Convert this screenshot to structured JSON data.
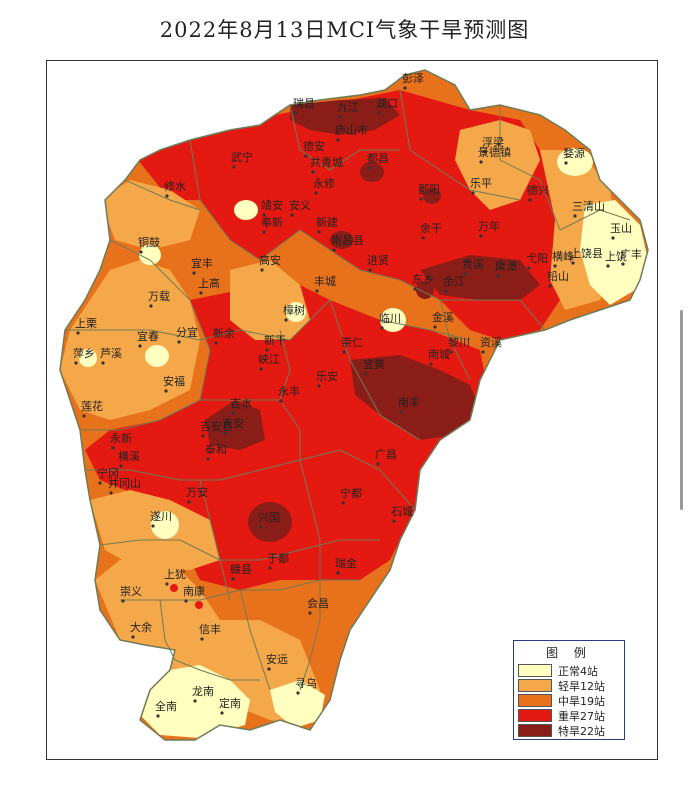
{
  "title": "2022年8月13日MCI气象干旱预测图",
  "colors": {
    "normal": "#FFFFC0",
    "light": "#F5A84A",
    "moderate": "#E8721C",
    "severe": "#E41A12",
    "extreme": "#8B1D18",
    "border": "#6E7B55"
  },
  "legend": {
    "title": "图  例",
    "items": [
      {
        "label": "正常4站",
        "color": "#FFFFC0"
      },
      {
        "label": "轻旱12站",
        "color": "#F5A84A"
      },
      {
        "label": "中旱19站",
        "color": "#E8721C"
      },
      {
        "label": "重旱27站",
        "color": "#E41A12"
      },
      {
        "label": "特旱22站",
        "color": "#8B1D18"
      }
    ]
  },
  "cities": [
    {
      "name": "彭泽"
    },
    {
      "name": "瑞昌"
    },
    {
      "name": "九江"
    },
    {
      "name": "湖口"
    },
    {
      "name": "庐山市"
    },
    {
      "name": "德安"
    },
    {
      "name": "共青城"
    },
    {
      "name": "都昌"
    },
    {
      "name": "武宁"
    },
    {
      "name": "修水"
    },
    {
      "name": "永修"
    },
    {
      "name": "婺源"
    },
    {
      "name": "浮梁"
    },
    {
      "name": "景德镇"
    },
    {
      "name": "鄱阳"
    },
    {
      "name": "乐平"
    },
    {
      "name": "德兴"
    },
    {
      "name": "三清山"
    },
    {
      "name": "玉山"
    },
    {
      "name": "上饶县"
    },
    {
      "name": "上饶"
    },
    {
      "name": "广丰"
    },
    {
      "name": "靖安"
    },
    {
      "name": "安义"
    },
    {
      "name": "奉新"
    },
    {
      "name": "新建"
    },
    {
      "name": "南昌县"
    },
    {
      "name": "进贤"
    },
    {
      "name": "余干"
    },
    {
      "name": "万年"
    },
    {
      "name": "弋阳"
    },
    {
      "name": "横峰"
    },
    {
      "name": "铅山"
    },
    {
      "name": "铜鼓"
    },
    {
      "name": "宜丰"
    },
    {
      "name": "高安"
    },
    {
      "name": "上高"
    },
    {
      "name": "丰城"
    },
    {
      "name": "东乡"
    },
    {
      "name": "余江"
    },
    {
      "name": "贵溪"
    },
    {
      "name": "鹰潭"
    },
    {
      "name": "万载"
    },
    {
      "name": "樟树"
    },
    {
      "name": "临川"
    },
    {
      "name": "金溪"
    },
    {
      "name": "资溪"
    },
    {
      "name": "上栗"
    },
    {
      "name": "宜春"
    },
    {
      "name": "分宜"
    },
    {
      "name": "新余"
    },
    {
      "name": "新干"
    },
    {
      "name": "崇仁"
    },
    {
      "name": "南城"
    },
    {
      "name": "萍乡"
    },
    {
      "name": "芦溪"
    },
    {
      "name": "峡江"
    },
    {
      "name": "宜黄"
    },
    {
      "name": "黎川"
    },
    {
      "name": "安福"
    },
    {
      "name": "永丰"
    },
    {
      "name": "乐安"
    },
    {
      "name": "南丰"
    },
    {
      "name": "莲花"
    },
    {
      "name": "吉水"
    },
    {
      "name": "吉安"
    },
    {
      "name": "吉安县"
    },
    {
      "name": "广昌"
    },
    {
      "name": "永新"
    },
    {
      "name": "泰和"
    },
    {
      "name": "宁都"
    },
    {
      "name": "井冈山"
    },
    {
      "name": "万安"
    },
    {
      "name": "石城"
    },
    {
      "name": "遂川"
    },
    {
      "name": "兴国"
    },
    {
      "name": "上犹"
    },
    {
      "name": "赣县"
    },
    {
      "name": "于都"
    },
    {
      "name": "瑞金"
    },
    {
      "name": "崇义"
    },
    {
      "name": "南康"
    },
    {
      "name": "大余"
    },
    {
      "name": "信丰"
    },
    {
      "name": "会昌"
    },
    {
      "name": "安远"
    },
    {
      "name": "寻乌"
    },
    {
      "name": "龙南"
    },
    {
      "name": "全南"
    },
    {
      "name": "定南"
    },
    {
      "name": "宁冈"
    },
    {
      "name": "横溪"
    }
  ]
}
